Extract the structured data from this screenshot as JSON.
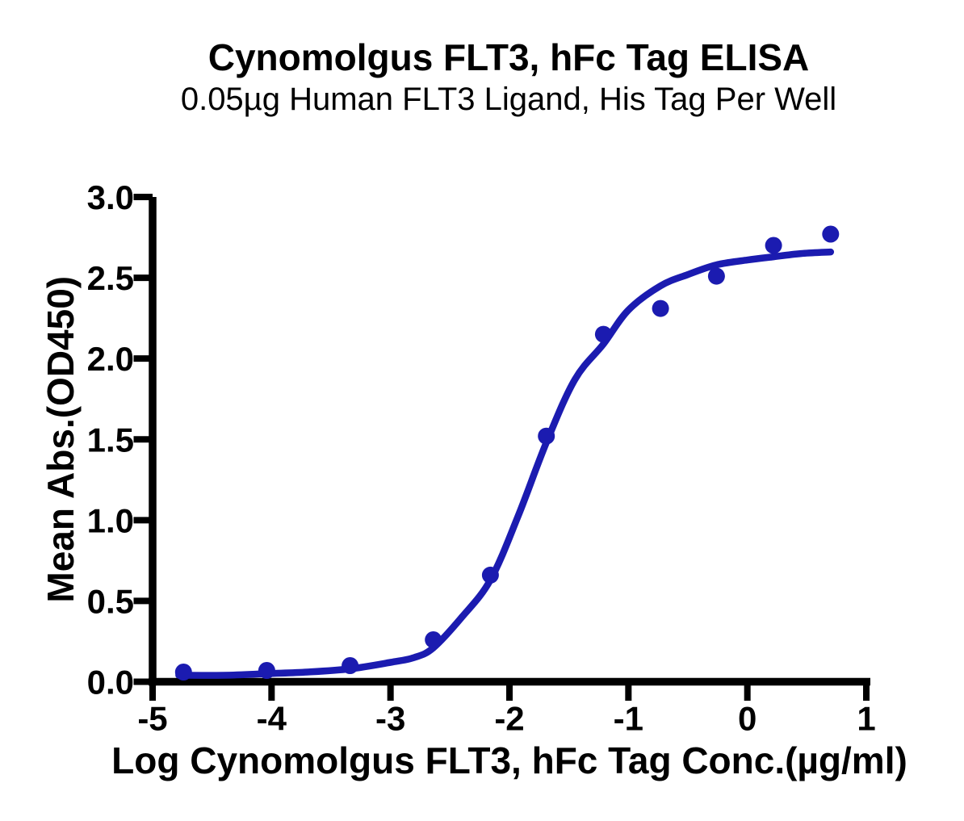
{
  "page": {
    "background": "#ffffff"
  },
  "chart_data": {
    "type": "scatter",
    "title": "Cynomolgus FLT3, hFc Tag ELISA",
    "subtitle": "0.05µg Human FLT3 Ligand, His Tag Per Well",
    "xlabel": "Log Cynomolgus FLT3, hFc Tag Conc.(µg/ml)",
    "ylabel": "Mean Abs.(OD450)",
    "xlim": [
      -5,
      1
    ],
    "ylim": [
      0,
      3
    ],
    "x_ticks": [
      -5,
      -4,
      -3,
      -2,
      -1,
      0,
      1
    ],
    "x_tick_labels": [
      "-5",
      "-4",
      "-3",
      "-2",
      "-1",
      "0",
      "1"
    ],
    "y_ticks": [
      0,
      0.5,
      1,
      1.5,
      2,
      2.5,
      3
    ],
    "y_tick_labels": [
      "0.0",
      "0.5",
      "1.0",
      "1.5",
      "2.0",
      "2.5",
      "3.0"
    ],
    "grid": false,
    "legend": false,
    "axis_color": "#000000",
    "text_color": "#000000",
    "series": [
      {
        "name": "Cynomolgus FLT3, hFc Tag data points",
        "type": "scatter",
        "marker": "circle",
        "color": "#1b1bb0",
        "x": [
          -4.74,
          -4.04,
          -3.34,
          -2.64,
          -2.16,
          -1.69,
          -1.21,
          -0.73,
          -0.26,
          0.22,
          0.7
        ],
        "y": [
          0.06,
          0.07,
          0.1,
          0.26,
          0.66,
          1.52,
          2.15,
          2.31,
          2.51,
          2.7,
          2.77
        ]
      },
      {
        "name": "4PL sigmoidal fit curve",
        "type": "line",
        "color": "#1b1bb0",
        "points": [
          [
            -4.78,
            0.04
          ],
          [
            -4.4,
            0.04
          ],
          [
            -4.04,
            0.05
          ],
          [
            -3.7,
            0.06
          ],
          [
            -3.34,
            0.08
          ],
          [
            -3.0,
            0.12
          ],
          [
            -2.8,
            0.15
          ],
          [
            -2.64,
            0.21
          ],
          [
            -2.4,
            0.4
          ],
          [
            -2.16,
            0.63
          ],
          [
            -1.93,
            1.02
          ],
          [
            -1.69,
            1.48
          ],
          [
            -1.45,
            1.87
          ],
          [
            -1.21,
            2.09
          ],
          [
            -1.0,
            2.3
          ],
          [
            -0.73,
            2.45
          ],
          [
            -0.5,
            2.52
          ],
          [
            -0.26,
            2.58
          ],
          [
            0.0,
            2.61
          ],
          [
            0.22,
            2.63
          ],
          [
            0.45,
            2.65
          ],
          [
            0.7,
            2.66
          ]
        ]
      }
    ]
  }
}
